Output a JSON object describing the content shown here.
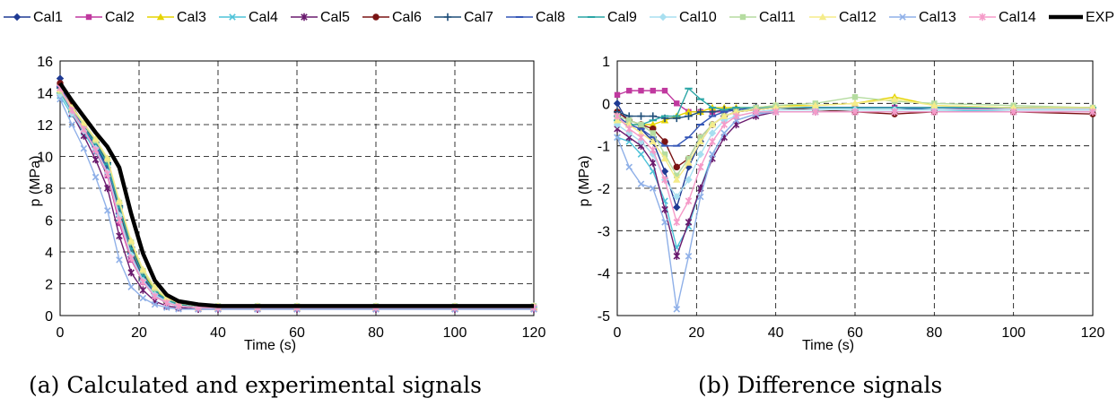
{
  "legend": [
    {
      "name": "Cal1",
      "color": "#1f3a93",
      "marker": "diamond"
    },
    {
      "name": "Cal2",
      "color": "#c0399f",
      "marker": "square"
    },
    {
      "name": "Cal3",
      "color": "#e6d400",
      "marker": "triangle"
    },
    {
      "name": "Cal4",
      "color": "#4fc3d9",
      "marker": "x"
    },
    {
      "name": "Cal5",
      "color": "#6a1b6e",
      "marker": "star"
    },
    {
      "name": "Cal6",
      "color": "#7a1414",
      "marker": "circle"
    },
    {
      "name": "Cal7",
      "color": "#1f4e79",
      "marker": "plus"
    },
    {
      "name": "Cal8",
      "color": "#3557b7",
      "marker": "dash"
    },
    {
      "name": "Cal9",
      "color": "#2aa6a6",
      "marker": "dash"
    },
    {
      "name": "Cal10",
      "color": "#a8dff0",
      "marker": "diamond"
    },
    {
      "name": "Cal11",
      "color": "#b5dca0",
      "marker": "square"
    },
    {
      "name": "Cal12",
      "color": "#f5ec8a",
      "marker": "triangle"
    },
    {
      "name": "Cal13",
      "color": "#8fb0e8",
      "marker": "x"
    },
    {
      "name": "Cal14",
      "color": "#f59ac8",
      "marker": "star"
    },
    {
      "name": "EXP",
      "color": "#000000",
      "marker": "none"
    }
  ],
  "captions": {
    "a": "(a) Calculated and experimental signals",
    "b": "(b) Difference signals"
  },
  "chart_data": [
    {
      "type": "line",
      "xlabel": "Time (s)",
      "ylabel": "p (MPa)",
      "xlim": [
        0,
        120
      ],
      "ylim": [
        0,
        16
      ],
      "xticks": [
        0,
        20,
        40,
        60,
        80,
        100,
        120
      ],
      "yticks": [
        0,
        2,
        4,
        6,
        8,
        10,
        12,
        14,
        16
      ],
      "grid": "dashed",
      "x": [
        0,
        3,
        6,
        9,
        12,
        15,
        18,
        21,
        24,
        27,
        30,
        35,
        40,
        50,
        60,
        80,
        100,
        120
      ],
      "series": [
        {
          "name": "Cal1",
          "values": [
            14.9,
            13.2,
            12.0,
            10.8,
            9.3,
            6.2,
            3.7,
            2.2,
            1.3,
            0.9,
            0.6,
            0.5,
            0.5,
            0.5,
            0.5,
            0.5,
            0.5,
            0.5
          ]
        },
        {
          "name": "Cal2",
          "values": [
            14.5,
            12.9,
            11.6,
            10.3,
            8.8,
            5.8,
            3.5,
            2.1,
            1.2,
            0.8,
            0.6,
            0.5,
            0.5,
            0.5,
            0.5,
            0.5,
            0.5,
            0.5
          ]
        },
        {
          "name": "Cal3",
          "values": [
            14.2,
            13.1,
            12.1,
            11.0,
            9.7,
            7.0,
            4.4,
            2.7,
            1.6,
            1.0,
            0.7,
            0.5,
            0.5,
            0.5,
            0.5,
            0.5,
            0.5,
            0.5
          ]
        },
        {
          "name": "Cal4",
          "values": [
            13.8,
            12.6,
            11.5,
            10.3,
            8.9,
            6.1,
            3.6,
            2.1,
            1.2,
            0.8,
            0.6,
            0.5,
            0.5,
            0.5,
            0.5,
            0.5,
            0.5,
            0.5
          ]
        },
        {
          "name": "Cal5",
          "values": [
            14.0,
            12.7,
            11.3,
            9.8,
            8.0,
            5.0,
            2.7,
            1.6,
            0.9,
            0.6,
            0.5,
            0.4,
            0.4,
            0.4,
            0.4,
            0.4,
            0.4,
            0.4
          ]
        },
        {
          "name": "Cal6",
          "values": [
            14.6,
            13.2,
            11.9,
            10.6,
            9.1,
            6.7,
            4.0,
            2.4,
            1.4,
            0.9,
            0.6,
            0.5,
            0.5,
            0.5,
            0.5,
            0.5,
            0.5,
            0.5
          ]
        },
        {
          "name": "Cal7",
          "values": [
            14.3,
            13.0,
            12.0,
            10.9,
            9.6,
            6.9,
            4.3,
            2.6,
            1.5,
            1.0,
            0.7,
            0.5,
            0.5,
            0.5,
            0.5,
            0.5,
            0.5,
            0.5
          ]
        },
        {
          "name": "Cal8",
          "values": [
            14.4,
            13.0,
            11.8,
            10.6,
            9.2,
            6.4,
            3.9,
            2.3,
            1.4,
            0.9,
            0.6,
            0.5,
            0.5,
            0.5,
            0.5,
            0.5,
            0.5,
            0.5
          ]
        },
        {
          "name": "Cal9",
          "values": [
            14.0,
            12.8,
            11.8,
            10.8,
            9.5,
            6.8,
            4.2,
            2.5,
            1.5,
            1.0,
            0.7,
            0.5,
            0.5,
            0.5,
            0.5,
            0.5,
            0.5,
            0.5
          ]
        },
        {
          "name": "Cal10",
          "values": [
            13.9,
            12.7,
            11.6,
            10.5,
            9.0,
            6.3,
            3.8,
            2.2,
            1.3,
            0.9,
            0.6,
            0.5,
            0.5,
            0.5,
            0.5,
            0.5,
            0.5,
            0.5
          ]
        },
        {
          "name": "Cal11",
          "values": [
            14.1,
            13.0,
            12.0,
            11.0,
            9.8,
            7.1,
            4.6,
            2.8,
            1.7,
            1.1,
            0.8,
            0.6,
            0.6,
            0.6,
            0.6,
            0.6,
            0.6,
            0.6
          ]
        },
        {
          "name": "Cal12",
          "values": [
            14.2,
            13.1,
            12.1,
            11.1,
            9.9,
            7.2,
            4.7,
            2.9,
            1.8,
            1.1,
            0.8,
            0.6,
            0.6,
            0.6,
            0.6,
            0.6,
            0.6,
            0.6
          ]
        },
        {
          "name": "Cal13",
          "values": [
            13.6,
            12.0,
            10.5,
            8.7,
            6.6,
            3.5,
            1.8,
            1.1,
            0.7,
            0.5,
            0.4,
            0.4,
            0.4,
            0.4,
            0.4,
            0.4,
            0.4,
            0.4
          ]
        },
        {
          "name": "Cal14",
          "values": [
            14.3,
            12.9,
            11.7,
            10.4,
            8.9,
            6.0,
            3.6,
            2.1,
            1.2,
            0.8,
            0.6,
            0.5,
            0.5,
            0.5,
            0.5,
            0.5,
            0.5,
            0.5
          ]
        },
        {
          "name": "EXP",
          "values": [
            14.6,
            13.5,
            12.5,
            11.5,
            10.6,
            9.3,
            6.4,
            3.9,
            2.2,
            1.3,
            0.9,
            0.7,
            0.6,
            0.6,
            0.6,
            0.6,
            0.6,
            0.6
          ]
        }
      ]
    },
    {
      "type": "line",
      "xlabel": "Time (s)",
      "ylabel": "p (MPa)",
      "xlim": [
        0,
        120
      ],
      "ylim": [
        -5,
        1
      ],
      "xticks": [
        0,
        20,
        40,
        60,
        80,
        100,
        120
      ],
      "yticks": [
        -5,
        -4,
        -3,
        -2,
        -1,
        0,
        1
      ],
      "grid": "dashed",
      "x": [
        0,
        3,
        6,
        9,
        12,
        15,
        18,
        21,
        24,
        27,
        30,
        35,
        40,
        50,
        60,
        70,
        80,
        100,
        120
      ],
      "series": [
        {
          "name": "Cal1",
          "values": [
            0.0,
            -0.5,
            -0.6,
            -0.9,
            -1.6,
            -2.45,
            -1.5,
            -0.9,
            -0.5,
            -0.3,
            -0.2,
            -0.15,
            -0.1,
            -0.1,
            -0.1,
            -0.1,
            -0.15,
            -0.15,
            -0.15
          ]
        },
        {
          "name": "Cal2",
          "values": [
            0.2,
            0.3,
            0.3,
            0.3,
            0.3,
            0.0,
            -0.2,
            -0.2,
            -0.2,
            -0.2,
            -0.15,
            -0.1,
            -0.1,
            -0.1,
            -0.1,
            -0.1,
            -0.1,
            -0.15,
            -0.15
          ]
        },
        {
          "name": "Cal3",
          "values": [
            -0.4,
            -0.5,
            -0.5,
            -0.5,
            -0.4,
            -0.3,
            -0.2,
            -0.2,
            -0.1,
            -0.1,
            -0.1,
            -0.1,
            -0.05,
            -0.05,
            0.0,
            0.15,
            -0.05,
            -0.1,
            -0.1
          ]
        },
        {
          "name": "Cal4",
          "values": [
            -0.8,
            -0.9,
            -1.2,
            -1.6,
            -2.3,
            -3.4,
            -2.9,
            -2.0,
            -1.2,
            -0.7,
            -0.4,
            -0.25,
            -0.15,
            -0.15,
            -0.15,
            -0.15,
            -0.15,
            -0.2,
            -0.2
          ]
        },
        {
          "name": "Cal5",
          "values": [
            -0.6,
            -0.8,
            -1.0,
            -1.4,
            -2.5,
            -3.6,
            -2.8,
            -2.0,
            -1.3,
            -0.8,
            -0.5,
            -0.3,
            -0.2,
            -0.2,
            -0.2,
            -0.2,
            -0.2,
            -0.2,
            -0.2
          ]
        },
        {
          "name": "Cal6",
          "values": [
            -0.2,
            -0.4,
            -0.5,
            -0.6,
            -0.9,
            -1.5,
            -1.3,
            -0.8,
            -0.5,
            -0.3,
            -0.2,
            -0.15,
            -0.1,
            -0.15,
            -0.2,
            -0.25,
            -0.2,
            -0.2,
            -0.25
          ]
        },
        {
          "name": "Cal7",
          "values": [
            -0.2,
            -0.3,
            -0.3,
            -0.3,
            -0.35,
            -0.35,
            -0.3,
            -0.2,
            -0.2,
            -0.15,
            -0.15,
            -0.1,
            -0.1,
            -0.1,
            -0.1,
            -0.1,
            -0.1,
            -0.1,
            -0.1
          ]
        },
        {
          "name": "Cal8",
          "values": [
            -0.3,
            -0.5,
            -0.6,
            -0.8,
            -1.0,
            -1.0,
            -0.8,
            -0.5,
            -0.3,
            -0.2,
            -0.15,
            -0.1,
            -0.1,
            -0.1,
            -0.1,
            -0.1,
            -0.1,
            -0.1,
            -0.1
          ]
        },
        {
          "name": "Cal9",
          "values": [
            -0.4,
            -0.5,
            -0.5,
            -0.4,
            -0.3,
            -0.3,
            0.35,
            0.1,
            -0.1,
            -0.15,
            -0.1,
            -0.1,
            -0.1,
            -0.1,
            -0.1,
            -0.1,
            -0.1,
            -0.1,
            -0.1
          ]
        },
        {
          "name": "Cal10",
          "values": [
            -0.5,
            -0.7,
            -0.9,
            -1.2,
            -1.8,
            -2.2,
            -1.8,
            -1.2,
            -0.7,
            -0.4,
            -0.3,
            -0.2,
            -0.15,
            -0.15,
            -0.15,
            -0.15,
            -0.15,
            -0.15,
            -0.15
          ]
        },
        {
          "name": "Cal11",
          "values": [
            -0.3,
            -0.4,
            -0.5,
            -0.7,
            -1.2,
            -1.7,
            -1.3,
            -0.8,
            -0.5,
            -0.3,
            -0.2,
            -0.1,
            -0.05,
            0.0,
            0.15,
            0.05,
            0.0,
            -0.05,
            -0.1
          ]
        },
        {
          "name": "Cal12",
          "values": [
            -0.4,
            -0.5,
            -0.7,
            -0.9,
            -1.3,
            -1.8,
            -1.4,
            -0.9,
            -0.5,
            -0.3,
            -0.2,
            -0.15,
            -0.1,
            -0.05,
            0.0,
            0.1,
            -0.05,
            -0.1,
            -0.1
          ]
        },
        {
          "name": "Cal13",
          "values": [
            -0.8,
            -1.5,
            -1.9,
            -2.0,
            -2.8,
            -4.85,
            -3.6,
            -2.2,
            -1.2,
            -0.7,
            -0.4,
            -0.25,
            -0.2,
            -0.2,
            -0.2,
            -0.2,
            -0.2,
            -0.2,
            -0.2
          ]
        },
        {
          "name": "Cal14",
          "values": [
            -0.3,
            -0.6,
            -0.8,
            -1.1,
            -1.8,
            -2.8,
            -2.3,
            -1.5,
            -0.9,
            -0.5,
            -0.3,
            -0.2,
            -0.2,
            -0.2,
            -0.2,
            -0.2,
            -0.2,
            -0.2,
            -0.2
          ]
        }
      ]
    }
  ]
}
